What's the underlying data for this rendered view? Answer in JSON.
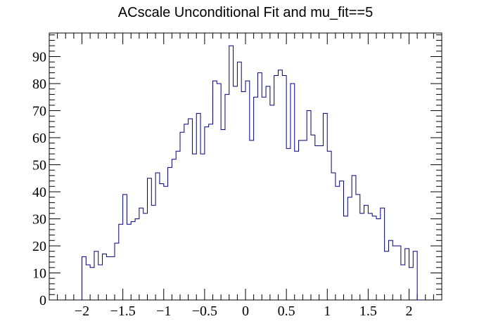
{
  "chart_data": {
    "type": "histogram",
    "title": "ACscale Unconditional Fit and mu_fit==5",
    "xlabel": "",
    "ylabel": "",
    "xlim": [
      -2.4,
      2.4
    ],
    "ylim": [
      0,
      98.7
    ],
    "x_ticks": [
      -2,
      -1.5,
      -1,
      -0.5,
      0,
      0.5,
      1,
      1.5,
      2
    ],
    "x_tick_labels": [
      "−2",
      "−1.5",
      "−1",
      "−0.5",
      "0",
      "0.5",
      "1",
      "1.5",
      "2"
    ],
    "y_ticks": [
      0,
      10,
      20,
      30,
      40,
      50,
      60,
      70,
      80,
      90
    ],
    "y_tick_labels": [
      "0",
      "10",
      "20",
      "30",
      "40",
      "50",
      "60",
      "70",
      "80",
      "90"
    ],
    "bin_edges_start": -2.0,
    "bin_width": 0.05,
    "counts": [
      16,
      13,
      12,
      18,
      13,
      17,
      16,
      16,
      21,
      28,
      39,
      28,
      29,
      30,
      34,
      32,
      45,
      35,
      47,
      43,
      42,
      49,
      52,
      55,
      62,
      65,
      67,
      54,
      69,
      54,
      64,
      65,
      81,
      80,
      63,
      76,
      94,
      79,
      88,
      77,
      81,
      59,
      75,
      84,
      75,
      79,
      72,
      83,
      85,
      83,
      56,
      80,
      55,
      59,
      59,
      70,
      61,
      57,
      57,
      69,
      55,
      47,
      42,
      44,
      31,
      38,
      46,
      39,
      32,
      35,
      32,
      31,
      30,
      34,
      18,
      22,
      20,
      20,
      13,
      19,
      12,
      18,
      0
    ],
    "grid": false,
    "legend": "none",
    "line_color": "#00007f"
  }
}
